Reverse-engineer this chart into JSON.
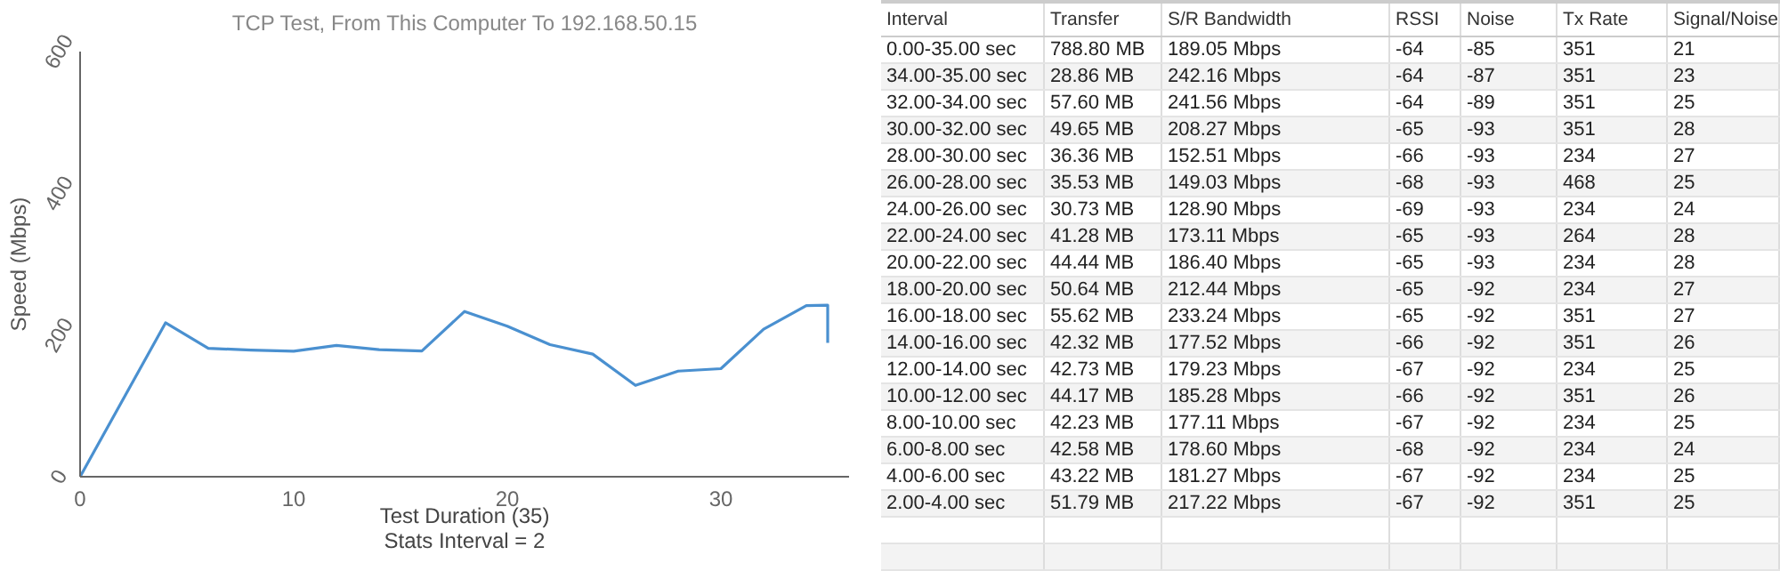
{
  "chart_data": [
    {
      "type": "line",
      "title": "TCP Test,  From This Computer To 192.168.50.15",
      "xlabel": "Test Duration (35)",
      "ylabel": "Speed (Mbps)",
      "annotations": [
        "Stats Interval = 2"
      ],
      "x": [
        0,
        4,
        6,
        8,
        10,
        12,
        14,
        16,
        18,
        20,
        22,
        24,
        26,
        28,
        30,
        32,
        34,
        35,
        35
      ],
      "series": [
        {
          "color": "#4a90d0",
          "values": [
            0,
            217.22,
            181.27,
            178.6,
            177.11,
            185.28,
            179.23,
            177.52,
            233.24,
            212.44,
            186.4,
            173.11,
            128.9,
            149.03,
            152.51,
            208.27,
            241.56,
            242.16,
            189.05
          ]
        }
      ],
      "xlim": [
        0,
        36
      ],
      "xticks": [
        0,
        10,
        20,
        30
      ],
      "ylim": [
        0,
        600
      ],
      "yticks": [
        0,
        200,
        400,
        600
      ]
    },
    {
      "type": "other",
      "categories": [
        "Interval",
        "Transfer",
        "S/R Bandwidth",
        "RSSI",
        "Noise",
        "Tx Rate",
        "Signal/Noise"
      ],
      "annotations": [
        "0.00-35.00 sec",
        "788.80 MB",
        "189.05 Mbps",
        "-64",
        "-85",
        "351",
        "21",
        "34.00-35.00 sec",
        "28.86 MB",
        "242.16 Mbps",
        "-64",
        "-87",
        "351",
        "23",
        "32.00-34.00 sec",
        "57.60 MB",
        "241.56 Mbps",
        "-64",
        "-89",
        "351",
        "25",
        "30.00-32.00 sec",
        "49.65 MB",
        "208.27 Mbps",
        "-65",
        "-93",
        "351",
        "28",
        "28.00-30.00 sec",
        "36.36 MB",
        "152.51 Mbps",
        "-66",
        "-93",
        "234",
        "27",
        "26.00-28.00 sec",
        "35.53 MB",
        "149.03 Mbps",
        "-68",
        "-93",
        "468",
        "25",
        "24.00-26.00 sec",
        "30.73 MB",
        "128.90 Mbps",
        "-69",
        "-93",
        "234",
        "24",
        "22.00-24.00 sec",
        "41.28 MB",
        "173.11 Mbps",
        "-65",
        "-93",
        "264",
        "28",
        "20.00-22.00 sec",
        "44.44 MB",
        "186.40 Mbps",
        "-65",
        "-93",
        "234",
        "28",
        "18.00-20.00 sec",
        "50.64 MB",
        "212.44 Mbps",
        "-65",
        "-92",
        "234",
        "27",
        "16.00-18.00 sec",
        "55.62 MB",
        "233.24 Mbps",
        "-65",
        "-92",
        "351",
        "27",
        "14.00-16.00 sec",
        "42.32 MB",
        "177.52 Mbps",
        "-66",
        "-92",
        "351",
        "26",
        "12.00-14.00 sec",
        "42.73 MB",
        "179.23 Mbps",
        "-67",
        "-92",
        "234",
        "25",
        "10.00-12.00 sec",
        "44.17 MB",
        "185.28 Mbps",
        "-66",
        "-92",
        "351",
        "26",
        "8.00-10.00 sec",
        "42.23 MB",
        "177.11 Mbps",
        "-67",
        "-92",
        "234",
        "25",
        "6.00-8.00 sec",
        "42.58 MB",
        "178.60 Mbps",
        "-68",
        "-92",
        "234",
        "24",
        "4.00-6.00 sec",
        "43.22 MB",
        "181.27 Mbps",
        "-67",
        "-92",
        "234",
        "25",
        "2.00-4.00 sec",
        "51.79 MB",
        "217.22 Mbps",
        "-67",
        "-92",
        "351",
        "25"
      ]
    }
  ]
}
